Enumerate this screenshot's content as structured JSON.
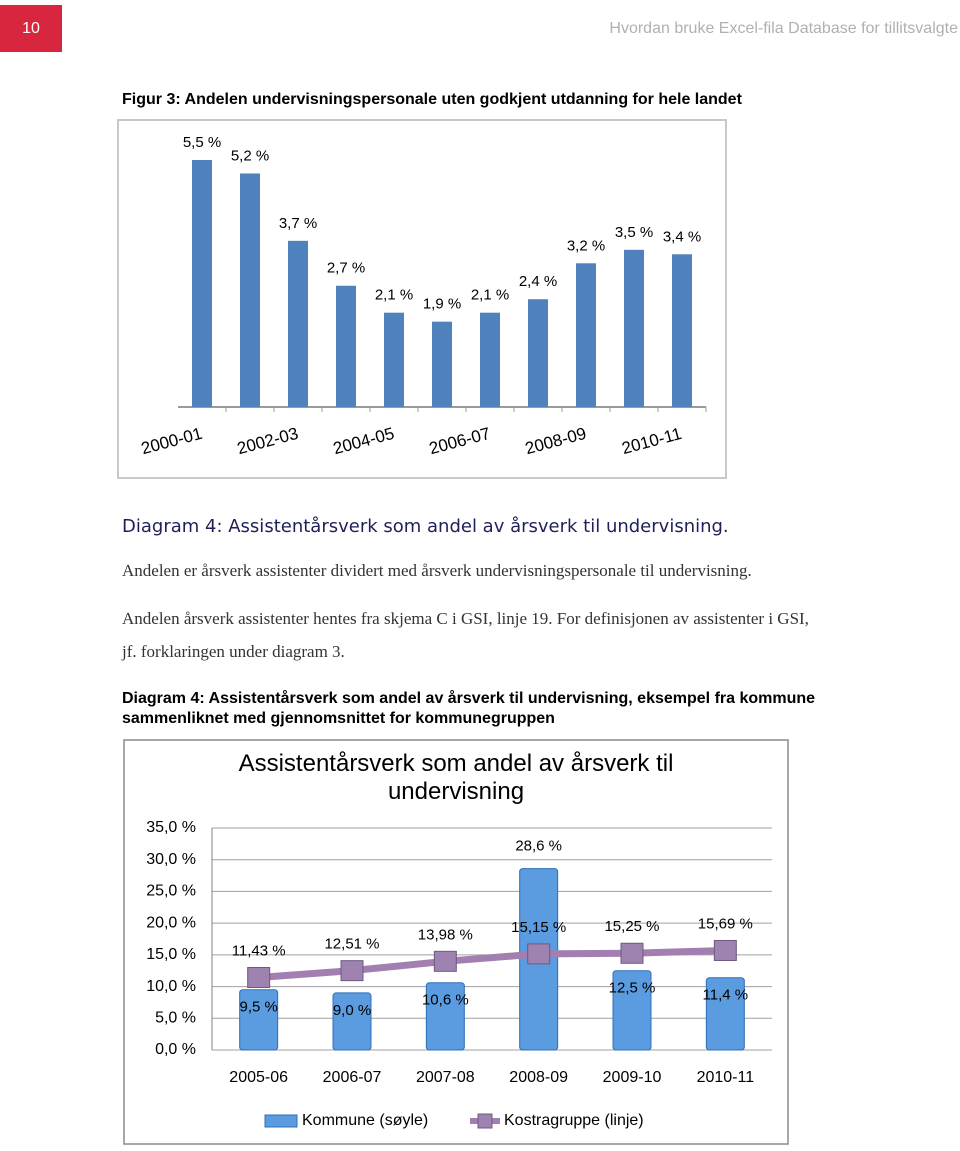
{
  "header": {
    "page_number": "10",
    "title": "Hvordan bruke Excel-fila Database for tillitsvalgte"
  },
  "figure_3_title": "Figur 3: Andelen undervisningspersonale uten godkjent utdanning for hele landet",
  "section_heading": "Diagram 4: Assistentårsverk som andel av årsverk til undervisning.",
  "paragraphs": [
    [
      "Andelen er årsverk assistenter dividert med årsverk undervisningspersonale til undervisning."
    ],
    [
      "Andelen årsverk assistenter hentes fra skjema C i GSI, linje 19. For definisjonen av assistenter i GSI,",
      "jf. forklaringen under diagram 3."
    ]
  ],
  "diagram_4_caption": [
    "Diagram 4: Assistentårsverk som andel av årsverk til undervisning, eksempel fra kommune",
    "sammenliknet med gjennomsnittet for kommunegruppen"
  ],
  "chart_data": [
    {
      "type": "bar",
      "categories": [
        "2000-01",
        null,
        "2002-03",
        null,
        "2004-05",
        null,
        "2006-07",
        null,
        "2008-09",
        null,
        "2010-11"
      ],
      "values": [
        5.5,
        5.2,
        3.7,
        2.7,
        2.1,
        1.9,
        2.1,
        2.4,
        3.2,
        3.5,
        3.4
      ],
      "value_labels": [
        "5,5 %",
        "5,2 %",
        "3,7 %",
        "2,7 %",
        "2,1 %",
        "1,9 %",
        "2,1 %",
        "2,4 %",
        "3,2 %",
        "3,5 %",
        "3,4 %"
      ],
      "color": "#4f81bd"
    },
    {
      "type": "bar_line",
      "title": "Assistentårsverk som andel av årsverk til undervisning",
      "categories": [
        "2005-06",
        "2006-07",
        "2007-08",
        "2008-09",
        "2009-10",
        "2010-11"
      ],
      "series": [
        {
          "name": "Kommune (søyle)",
          "type": "bar",
          "color": "#5b9be0",
          "values": [
            9.5,
            9.0,
            10.6,
            28.6,
            12.5,
            11.4
          ],
          "value_labels": [
            "9,5 %",
            "9,0 %",
            "10,6 %",
            "28,6 %",
            "12,5 %",
            "11,4 %"
          ]
        },
        {
          "name": "Kostragruppe (linje)",
          "type": "line",
          "color": "#a27fb0",
          "values": [
            11.43,
            12.51,
            13.98,
            15.15,
            15.25,
            15.69
          ],
          "value_labels": [
            "11,43 %",
            "12,51 %",
            "13,98 %",
            "15,15 %",
            "15,25 %",
            "15,69 %"
          ]
        }
      ],
      "ylim": [
        0,
        35
      ],
      "yticks": [
        {
          "value": 0,
          "label": "0,0 %"
        },
        {
          "value": 5,
          "label": "5,0 %"
        },
        {
          "value": 10,
          "label": "10,0 %"
        },
        {
          "value": 15,
          "label": "15,0 %"
        },
        {
          "value": 20,
          "label": "20,0 %"
        },
        {
          "value": 25,
          "label": "25,0 %"
        },
        {
          "value": 30,
          "label": "30,0 %"
        },
        {
          "value": 35,
          "label": "35,0 %"
        }
      ],
      "grid": true,
      "legend": "bottom"
    }
  ]
}
